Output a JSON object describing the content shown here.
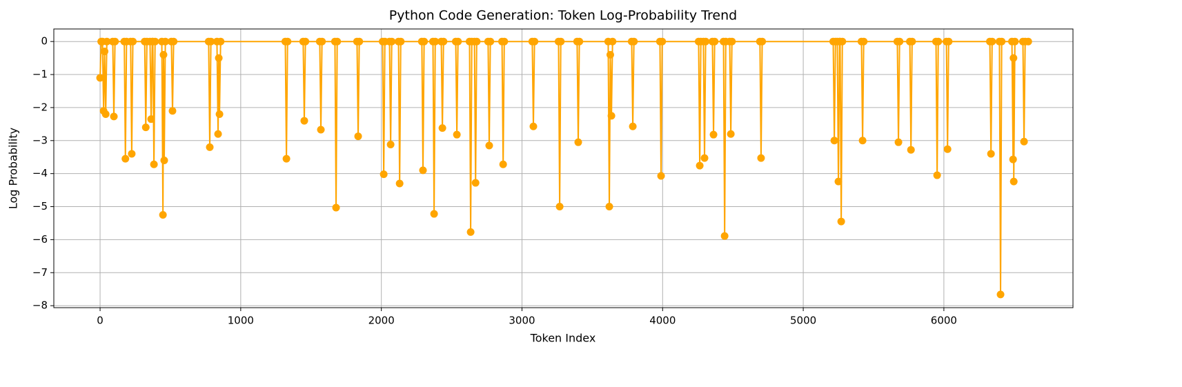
{
  "chart_data": {
    "type": "line",
    "title": "Python Code Generation: Token Log-Probability Trend",
    "xlabel": "Token Index",
    "ylabel": "Log Probability",
    "color": "#ffa500",
    "grid": true,
    "xlim": [
      -329,
      6918
    ],
    "ylim": [
      -8.06,
      0.38
    ],
    "xticks": [
      0,
      1000,
      2000,
      3000,
      4000,
      5000,
      6000
    ],
    "yticks": [
      0,
      {
        "value": -1,
        "label": "−1"
      },
      {
        "value": -2,
        "label": "−2"
      },
      {
        "value": -3,
        "label": "−3"
      },
      {
        "value": -4,
        "label": "−4"
      },
      {
        "value": -5,
        "label": "−5"
      },
      {
        "value": -6,
        "label": "−6"
      },
      {
        "value": -7,
        "label": "−7"
      },
      {
        "value": -8,
        "label": "−8"
      }
    ],
    "x": [
      0,
      8,
      17,
      25,
      32,
      40,
      48,
      90,
      98,
      106,
      172,
      180,
      188,
      217,
      225,
      233,
      317,
      325,
      333,
      355,
      363,
      371,
      375,
      383,
      391,
      439,
      447,
      451,
      456,
      464,
      507,
      515,
      523,
      772,
      780,
      788,
      831,
      839,
      844,
      849,
      857,
      1317,
      1325,
      1333,
      1444,
      1452,
      1460,
      1562,
      1570,
      1578,
      1670,
      1678,
      1686,
      1827,
      1835,
      1843,
      2009,
      2017,
      2025,
      2058,
      2066,
      2074,
      2122,
      2130,
      2138,
      2288,
      2296,
      2304,
      2367,
      2375,
      2383,
      2426,
      2434,
      2442,
      2529,
      2537,
      2545,
      2627,
      2635,
      2643,
      2662,
      2670,
      2678,
      2759,
      2767,
      2775,
      2858,
      2866,
      2874,
      3073,
      3081,
      3089,
      3260,
      3268,
      3276,
      3392,
      3400,
      3408,
      3613,
      3621,
      3628,
      3636,
      3644,
      3780,
      3788,
      3796,
      3981,
      3989,
      3997,
      4256,
      4264,
      4272,
      4290,
      4298,
      4306,
      4354,
      4362,
      4370,
      4433,
      4441,
      4449,
      4477,
      4485,
      4493,
      4692,
      4700,
      4708,
      5213,
      5221,
      5229,
      5242,
      5250,
      5258,
      5262,
      5270,
      5278,
      5414,
      5422,
      5430,
      5669,
      5677,
      5685,
      5758,
      5766,
      5774,
      5944,
      5952,
      5960,
      6018,
      6026,
      6034,
      6327,
      6335,
      6343,
      6395,
      6403,
      6411,
      6484,
      6492,
      6495,
      6497,
      6505,
      6562,
      6570,
      6578,
      6600
    ],
    "values": [
      -1.1,
      0,
      0,
      -2.1,
      -0.3,
      -2.2,
      0,
      0,
      -2.27,
      0,
      0,
      -3.55,
      0,
      0,
      -3.4,
      0,
      0,
      -2.6,
      0,
      0,
      -2.35,
      0,
      0,
      -3.72,
      0,
      0,
      -5.25,
      -0.4,
      -3.6,
      0,
      0,
      -2.1,
      0,
      0,
      -3.2,
      0,
      0,
      -2.8,
      -0.5,
      -2.2,
      0,
      0,
      -3.55,
      0,
      0,
      -2.4,
      0,
      0,
      -2.67,
      0,
      0,
      -5.03,
      0,
      0,
      -2.87,
      0,
      0,
      -4.02,
      0,
      0,
      -3.12,
      0,
      0,
      -4.3,
      0,
      0,
      -3.9,
      0,
      0,
      -5.22,
      0,
      0,
      -2.62,
      0,
      0,
      -2.82,
      0,
      0,
      -5.77,
      0,
      0,
      -4.28,
      0,
      0,
      -3.15,
      0,
      0,
      -3.72,
      0,
      0,
      -2.57,
      0,
      0,
      -5.0,
      0,
      0,
      -3.05,
      0,
      0,
      -5.0,
      -0.4,
      -2.25,
      0,
      0,
      -2.57,
      0,
      0,
      -4.07,
      0,
      0,
      -3.76,
      0,
      0,
      -3.53,
      0,
      0,
      -2.82,
      0,
      0,
      -5.89,
      0,
      0,
      -2.8,
      0,
      0,
      -3.53,
      0,
      0,
      -3.0,
      0,
      0,
      -4.24,
      0,
      0,
      -5.45,
      0,
      0,
      -3.0,
      0,
      0,
      -3.05,
      0,
      0,
      -3.28,
      0,
      0,
      -4.05,
      0,
      0,
      -3.26,
      0,
      0,
      -3.4,
      0,
      0,
      -7.66,
      0,
      0,
      -3.57,
      -0.5,
      -4.24,
      0,
      0,
      -3.03,
      0,
      0
    ]
  }
}
